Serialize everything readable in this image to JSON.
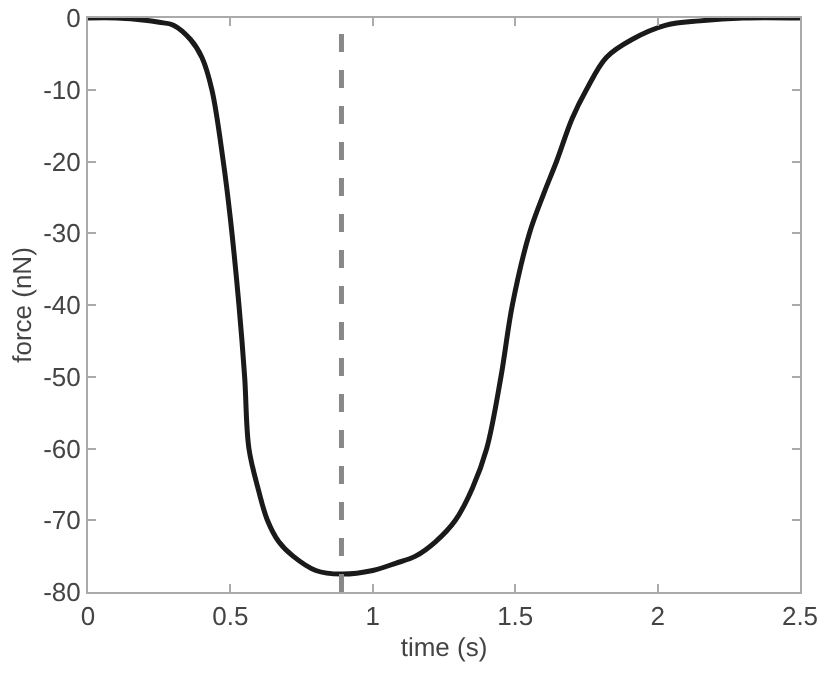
{
  "chart_data": {
    "type": "line",
    "xlabel": "time (s)",
    "ylabel": "force (nN)",
    "xlim": [
      0,
      2.5
    ],
    "xticks": [
      0,
      0.5,
      1,
      1.5,
      2,
      2.5
    ],
    "ylim": [
      -80,
      0
    ],
    "yticks": [
      -80,
      -70,
      -60,
      -50,
      -40,
      -30,
      -20,
      -10,
      0
    ],
    "grid": false,
    "marker": "none",
    "line_style": "solid",
    "series": [
      {
        "color": "#1a1a1a",
        "x": [
          0,
          0.1,
          0.2,
          0.25,
          0.3,
          0.36,
          0.4,
          0.435,
          0.475,
          0.5,
          0.53,
          0.55,
          0.565,
          0.6,
          0.63,
          0.67,
          0.72,
          0.8,
          0.89,
          1.0,
          1.08,
          1.15,
          1.22,
          1.29,
          1.35,
          1.4,
          1.45,
          1.49,
          1.55,
          1.6,
          1.645,
          1.7,
          1.75,
          1.82,
          1.91,
          2.03,
          2.15,
          2.3,
          2.5
        ],
        "values": [
          0,
          0,
          -0.3,
          -0.6,
          -1,
          -3,
          -5.5,
          -10,
          -20,
          -28,
          -40,
          -50,
          -60,
          -66,
          -70,
          -73,
          -75,
          -77,
          -77.5,
          -77,
          -76,
          -75,
          -73,
          -70,
          -65.5,
          -60,
          -50,
          -40,
          -30,
          -24.5,
          -20,
          -14,
          -10,
          -5.5,
          -3,
          -1,
          -0.4,
          0,
          0
        ]
      }
    ],
    "ref_lines": [
      {
        "axis": "x",
        "value": 0.89,
        "color": "#888888",
        "line_style": "dashed"
      }
    ]
  }
}
